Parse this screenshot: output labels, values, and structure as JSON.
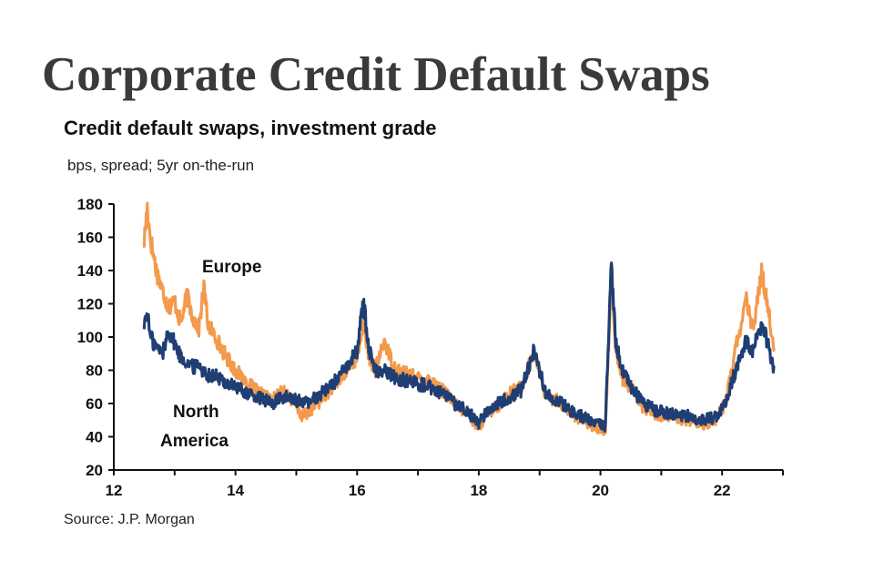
{
  "page": {
    "title": "Corporate Credit Default Swaps"
  },
  "chart_data": {
    "type": "line",
    "title": "Credit default swaps, investment grade",
    "subtitle": "bps, spread; 5yr on-the-run",
    "source": "Source: J.P. Morgan",
    "xlabel": "",
    "ylabel": "",
    "xlim": [
      12,
      23
    ],
    "ylim": [
      20,
      180
    ],
    "x_ticks": [
      12,
      14,
      16,
      18,
      20,
      22
    ],
    "y_ticks": [
      20,
      40,
      60,
      80,
      100,
      120,
      140,
      160,
      180
    ],
    "grid": false,
    "series": [
      {
        "name": "Europe",
        "color": "#f39a4c",
        "points": [
          [
            12.5,
            158
          ],
          [
            12.55,
            178
          ],
          [
            12.6,
            160
          ],
          [
            12.7,
            140
          ],
          [
            12.8,
            128
          ],
          [
            12.9,
            118
          ],
          [
            13.0,
            122
          ],
          [
            13.1,
            108
          ],
          [
            13.2,
            125
          ],
          [
            13.3,
            112
          ],
          [
            13.4,
            105
          ],
          [
            13.48,
            130
          ],
          [
            13.55,
            108
          ],
          [
            13.7,
            98
          ],
          [
            13.85,
            88
          ],
          [
            14.0,
            80
          ],
          [
            14.2,
            72
          ],
          [
            14.4,
            66
          ],
          [
            14.6,
            62
          ],
          [
            14.8,
            68
          ],
          [
            15.0,
            58
          ],
          [
            15.1,
            52
          ],
          [
            15.2,
            55
          ],
          [
            15.4,
            62
          ],
          [
            15.6,
            70
          ],
          [
            15.8,
            78
          ],
          [
            16.0,
            88
          ],
          [
            16.1,
            108
          ],
          [
            16.2,
            88
          ],
          [
            16.3,
            80
          ],
          [
            16.45,
            98
          ],
          [
            16.6,
            82
          ],
          [
            16.8,
            78
          ],
          [
            17.0,
            75
          ],
          [
            17.2,
            74
          ],
          [
            17.4,
            68
          ],
          [
            17.6,
            60
          ],
          [
            17.8,
            54
          ],
          [
            18.0,
            46
          ],
          [
            18.1,
            52
          ],
          [
            18.3,
            58
          ],
          [
            18.5,
            66
          ],
          [
            18.7,
            70
          ],
          [
            18.9,
            90
          ],
          [
            19.0,
            80
          ],
          [
            19.1,
            64
          ],
          [
            19.3,
            62
          ],
          [
            19.5,
            55
          ],
          [
            19.7,
            50
          ],
          [
            19.9,
            46
          ],
          [
            20.08,
            44
          ],
          [
            20.18,
            140
          ],
          [
            20.25,
            95
          ],
          [
            20.35,
            75
          ],
          [
            20.5,
            70
          ],
          [
            20.7,
            58
          ],
          [
            20.9,
            54
          ],
          [
            21.1,
            52
          ],
          [
            21.3,
            51
          ],
          [
            21.5,
            49
          ],
          [
            21.7,
            48
          ],
          [
            21.9,
            50
          ],
          [
            22.05,
            60
          ],
          [
            22.15,
            78
          ],
          [
            22.25,
            98
          ],
          [
            22.4,
            122
          ],
          [
            22.5,
            104
          ],
          [
            22.65,
            138
          ],
          [
            22.75,
            120
          ],
          [
            22.85,
            92
          ]
        ]
      },
      {
        "name": "North America",
        "color": "#1f3e73",
        "points": [
          [
            12.5,
            108
          ],
          [
            12.55,
            115
          ],
          [
            12.6,
            100
          ],
          [
            12.7,
            94
          ],
          [
            12.8,
            90
          ],
          [
            12.9,
            104
          ],
          [
            13.0,
            96
          ],
          [
            13.1,
            88
          ],
          [
            13.2,
            85
          ],
          [
            13.3,
            82
          ],
          [
            13.4,
            84
          ],
          [
            13.5,
            78
          ],
          [
            13.7,
            76
          ],
          [
            13.85,
            72
          ],
          [
            14.0,
            70
          ],
          [
            14.2,
            66
          ],
          [
            14.4,
            63
          ],
          [
            14.6,
            60
          ],
          [
            14.8,
            64
          ],
          [
            15.0,
            62
          ],
          [
            15.2,
            60
          ],
          [
            15.4,
            66
          ],
          [
            15.6,
            72
          ],
          [
            15.8,
            80
          ],
          [
            16.0,
            92
          ],
          [
            16.1,
            122
          ],
          [
            16.2,
            92
          ],
          [
            16.3,
            80
          ],
          [
            16.45,
            80
          ],
          [
            16.6,
            76
          ],
          [
            16.8,
            74
          ],
          [
            17.0,
            72
          ],
          [
            17.2,
            70
          ],
          [
            17.4,
            66
          ],
          [
            17.6,
            60
          ],
          [
            17.8,
            56
          ],
          [
            18.0,
            48
          ],
          [
            18.1,
            54
          ],
          [
            18.3,
            60
          ],
          [
            18.5,
            64
          ],
          [
            18.7,
            68
          ],
          [
            18.9,
            92
          ],
          [
            19.0,
            80
          ],
          [
            19.1,
            66
          ],
          [
            19.3,
            62
          ],
          [
            19.5,
            56
          ],
          [
            19.7,
            52
          ],
          [
            19.9,
            48
          ],
          [
            20.08,
            46
          ],
          [
            20.18,
            146
          ],
          [
            20.25,
            98
          ],
          [
            20.35,
            80
          ],
          [
            20.5,
            70
          ],
          [
            20.7,
            60
          ],
          [
            20.9,
            56
          ],
          [
            21.1,
            54
          ],
          [
            21.3,
            53
          ],
          [
            21.5,
            52
          ],
          [
            21.7,
            50
          ],
          [
            21.9,
            52
          ],
          [
            22.05,
            60
          ],
          [
            22.15,
            72
          ],
          [
            22.25,
            82
          ],
          [
            22.4,
            98
          ],
          [
            22.5,
            90
          ],
          [
            22.65,
            108
          ],
          [
            22.75,
            96
          ],
          [
            22.85,
            82
          ]
        ]
      }
    ],
    "annotations": [
      {
        "series": "Europe",
        "lines": [
          "Europe"
        ]
      },
      {
        "series": "North America",
        "lines": [
          "North",
          "America"
        ]
      }
    ]
  }
}
